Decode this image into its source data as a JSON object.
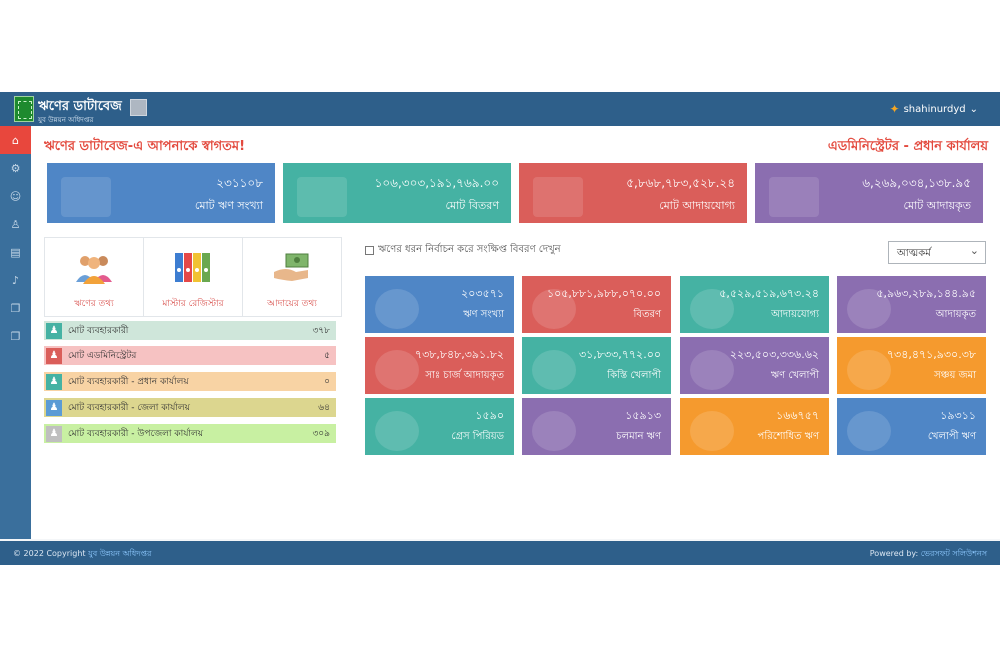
{
  "header": {
    "title": "ঋণের ডাটাবেজ",
    "subtitle": "যুব উন্নয়ন অধিদপ্তর",
    "username": "shahinurdyd",
    "user_caret": "⌄"
  },
  "sidebar": {
    "items": [
      {
        "icon": "home-icon",
        "glyph": "⌂"
      },
      {
        "icon": "settings-icon",
        "glyph": "⚙"
      },
      {
        "icon": "users-icon",
        "glyph": "☺"
      },
      {
        "icon": "user-icon",
        "glyph": "♙"
      },
      {
        "icon": "book-icon",
        "glyph": "▤"
      },
      {
        "icon": "bell-icon",
        "glyph": "♪"
      },
      {
        "icon": "copy-icon",
        "glyph": "❐"
      },
      {
        "icon": "copy-icon",
        "glyph": "❐"
      }
    ]
  },
  "welcome": "ঋণের ডাটাবেজ-এ আপনাকে স্বাগতম!",
  "role": "এডমিনিস্ট্রেটর - প্রধান কার্যালয়",
  "stats": [
    {
      "value": "২৩১১০৮",
      "label": "মোট ঋণ সংখ্যা",
      "color": "#4f86c6"
    },
    {
      "value": "১০৬,৩০৩,১৯১,৭৬৯.০০",
      "label": "মোট বিতরণ",
      "color": "#45b2a3"
    },
    {
      "value": "৫,৮৬৮,৭৮৩,৫২৮.২৪",
      "label": "মোট আদায়যোগ্য",
      "color": "#da5e5a"
    },
    {
      "value": "৬,২৬৯,০৩৪,১৩৮.৯৫",
      "label": "মোট আদায়কৃত",
      "color": "#8b6eb0"
    }
  ],
  "quick_links": [
    {
      "label": "ঋণের তথ্য"
    },
    {
      "label": "মাস্টার রেজিস্টার"
    },
    {
      "label": "আদায়ের তথ্য"
    }
  ],
  "user_counts": [
    {
      "label": "মোট ব্যবহারকারী",
      "value": "৩৭৮",
      "bg": "#cfe6da",
      "icon_bg": "#45b2a3"
    },
    {
      "label": "মোট এডমিনিস্ট্রেটর",
      "value": "৫",
      "bg": "#f6c2c2",
      "icon_bg": "#da5e5a"
    },
    {
      "label": "মোট ব্যবহারকারী - প্রধান কার্যালয়",
      "value": "০",
      "bg": "#f8d3a4",
      "icon_bg": "#45b2a3"
    },
    {
      "label": "মোট ব্যবহারকারী - জেলা কার্যালয়",
      "value": "৬৪",
      "bg": "#dcd68f",
      "icon_bg": "#5b9bd5"
    },
    {
      "label": "মোট ব্যবহারকারী - উপজেলা কার্যালয়",
      "value": "৩০৯",
      "bg": "#c8f0a2",
      "icon_bg": "#bfbfbf"
    }
  ],
  "filter_title": "ঋণের ধরন নির্বাচন করে সংক্ষিপ্ত বিবরণ দেখুন",
  "select_value": "আত্মকর্ম",
  "tiles": [
    {
      "value": "২০৩৫৭১",
      "label": "ঋণ সংখ্যা",
      "color": "#4f86c6"
    },
    {
      "value": "১০৫,৮৮১,৯৮৮,০৭০.০০",
      "label": "বিতরণ",
      "color": "#da5e5a"
    },
    {
      "value": "৫,৫২৯,৫১৯,৬৭৩.২৪",
      "label": "আদায়যোগ্য",
      "color": "#45b2a3"
    },
    {
      "value": "৫,৯৬৩,২৮৯,১৪৪.৯৫",
      "label": "আদায়কৃত",
      "color": "#8b6eb0"
    },
    {
      "value": "৭৩৮,৮৪৮,৩৯১.৮২",
      "label": "সাঃ চার্জ আদায়কৃত",
      "color": "#da5e5a"
    },
    {
      "value": "৩১,৮৩৩,৭৭২.০০",
      "label": "কিস্তি খেলাপী",
      "color": "#45b2a3"
    },
    {
      "value": "২২৩,৫০৩,৩৩৬.৬২",
      "label": "ঋণ খেলাপী",
      "color": "#8b6eb0"
    },
    {
      "value": "৭৩৪,৪৭১,৯৩০.৩৮",
      "label": "সঞ্চয় জমা",
      "color": "#f59a2e"
    },
    {
      "value": "১৫৯০",
      "label": "গ্রেস পিরিয়ড",
      "color": "#45b2a3"
    },
    {
      "value": "১৫৯১৩",
      "label": "চলমান ঋণ",
      "color": "#8b6eb0"
    },
    {
      "value": "১৬৬৭৫৭",
      "label": "পরিশোধিত ঋণ",
      "color": "#f59a2e"
    },
    {
      "value": "১৯৩১১",
      "label": "খেলাপী ঋণ",
      "color": "#4f86c6"
    }
  ],
  "footer": {
    "copyright": "© 2022 Copyright",
    "org": "যুব উন্নয়ন অধিদপ্তর",
    "powered": "Powered by:",
    "vendor": "ভেরসফট সলিউশনস"
  }
}
